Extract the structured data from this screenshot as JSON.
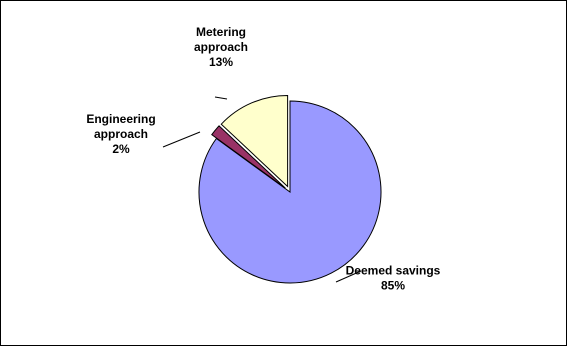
{
  "chart_data": {
    "type": "pie",
    "title": "",
    "slices": [
      {
        "label_lines": [
          "Deemed savings"
        ],
        "percent_label": "85%",
        "value": 85,
        "color": "#9999ff",
        "exploded": false
      },
      {
        "label_lines": [
          "Engineering",
          "approach"
        ],
        "percent_label": "2%",
        "value": 2,
        "color": "#993366",
        "exploded": true
      },
      {
        "label_lines": [
          "Metering",
          "approach"
        ],
        "percent_label": "13%",
        "value": 13,
        "color": "#ffffcc",
        "exploded": true
      }
    ],
    "legend": "none"
  }
}
